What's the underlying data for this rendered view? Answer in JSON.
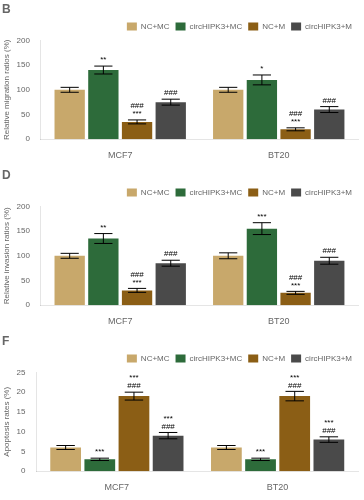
{
  "chart_data": [
    {
      "type": "bar",
      "title": "B",
      "y_label": "Relative migration ratios (%)",
      "categories": [
        "MCF7",
        "BT20"
      ],
      "series": [
        {
          "name": "NC+MC",
          "color": "#C8A86B",
          "values": [
            100,
            100
          ],
          "errors": [
            5,
            5
          ]
        },
        {
          "name": "circHIPK3+MC",
          "color": "#2D6B3A",
          "values": [
            140,
            120
          ],
          "errors": [
            8,
            10
          ]
        },
        {
          "name": "NC+M",
          "color": "#8B5E15",
          "values": [
            35,
            20
          ],
          "errors": [
            4,
            3
          ]
        },
        {
          "name": "circHIPK3+M",
          "color": "#4A4A4A",
          "values": [
            75,
            60
          ],
          "errors": [
            6,
            6
          ]
        }
      ],
      "annotations": [
        {
          "text": "**",
          "series": "circHIPK3+MC",
          "category": "MCF7"
        },
        {
          "text": "###\n***",
          "series": "NC+M",
          "category": "MCF7"
        },
        {
          "text": "###",
          "series": "circHIPK3+M",
          "category": "MCF7"
        },
        {
          "text": "*",
          "series": "circHIPK3+MC",
          "category": "BT20"
        },
        {
          "text": "###\n***",
          "series": "NC+M",
          "category": "BT20"
        },
        {
          "text": "###",
          "series": "circHIPK3+M",
          "category": "BT20"
        }
      ],
      "ylim": [
        0,
        200
      ],
      "yticks": [
        0,
        50,
        100,
        150,
        200
      ],
      "grid": false,
      "legend": "upper right"
    },
    {
      "type": "bar",
      "title": "D",
      "y_label": "Relative invasion ratios (%)",
      "categories": [
        "MCF7",
        "BT20"
      ],
      "series": [
        {
          "name": "NC+MC",
          "color": "#C8A86B",
          "values": [
            100,
            100
          ],
          "errors": [
            5,
            6
          ]
        },
        {
          "name": "circHIPK3+MC",
          "color": "#2D6B3A",
          "values": [
            135,
            155
          ],
          "errors": [
            10,
            12
          ]
        },
        {
          "name": "NC+M",
          "color": "#8B5E15",
          "values": [
            30,
            25
          ],
          "errors": [
            4,
            3
          ]
        },
        {
          "name": "circHIPK3+M",
          "color": "#4A4A4A",
          "values": [
            85,
            90
          ],
          "errors": [
            6,
            7
          ]
        }
      ],
      "annotations": [
        {
          "text": "**",
          "series": "circHIPK3+MC",
          "category": "MCF7"
        },
        {
          "text": "###\n***",
          "series": "NC+M",
          "category": "MCF7"
        },
        {
          "text": "###",
          "series": "circHIPK3+M",
          "category": "MCF7"
        },
        {
          "text": "***",
          "series": "circHIPK3+MC",
          "category": "BT20"
        },
        {
          "text": "###\n***",
          "series": "NC+M",
          "category": "BT20"
        },
        {
          "text": "###",
          "series": "circHIPK3+M",
          "category": "BT20"
        }
      ],
      "ylim": [
        0,
        200
      ],
      "yticks": [
        0,
        50,
        100,
        150,
        200
      ],
      "grid": false,
      "legend": "upper right"
    },
    {
      "type": "bar",
      "title": "F",
      "y_label": "Apoptosis rates (%)",
      "categories": [
        "MCF7",
        "BT20"
      ],
      "series": [
        {
          "name": "NC+MC",
          "color": "#C8A86B",
          "values": [
            6,
            6
          ],
          "errors": [
            0.5,
            0.5
          ]
        },
        {
          "name": "circHIPK3+MC",
          "color": "#2D6B3A",
          "values": [
            3,
            3
          ],
          "errors": [
            0.3,
            0.3
          ]
        },
        {
          "name": "NC+M",
          "color": "#8B5E15",
          "values": [
            19,
            19
          ],
          "errors": [
            1.0,
            1.2
          ]
        },
        {
          "name": "circHIPK3+M",
          "color": "#4A4A4A",
          "values": [
            9,
            8
          ],
          "errors": [
            0.8,
            0.7
          ]
        }
      ],
      "annotations": [
        {
          "text": "***\n###",
          "series": "NC+M",
          "category": "MCF7"
        },
        {
          "text": "***\n###",
          "series": "circHIPK3+M",
          "category": "MCF7"
        },
        {
          "text": "***",
          "series": "circHIPK3+MC",
          "category": "MCF7"
        },
        {
          "text": "***\n###",
          "series": "NC+M",
          "category": "BT20"
        },
        {
          "text": "***\n###",
          "series": "circHIPK3+M",
          "category": "BT20"
        },
        {
          "text": "***",
          "series": "circHIPK3+MC",
          "category": "BT20"
        }
      ],
      "ylim": [
        0,
        25
      ],
      "yticks": [
        0,
        5,
        10,
        15,
        20,
        25
      ],
      "grid": false,
      "legend": "upper right"
    }
  ]
}
